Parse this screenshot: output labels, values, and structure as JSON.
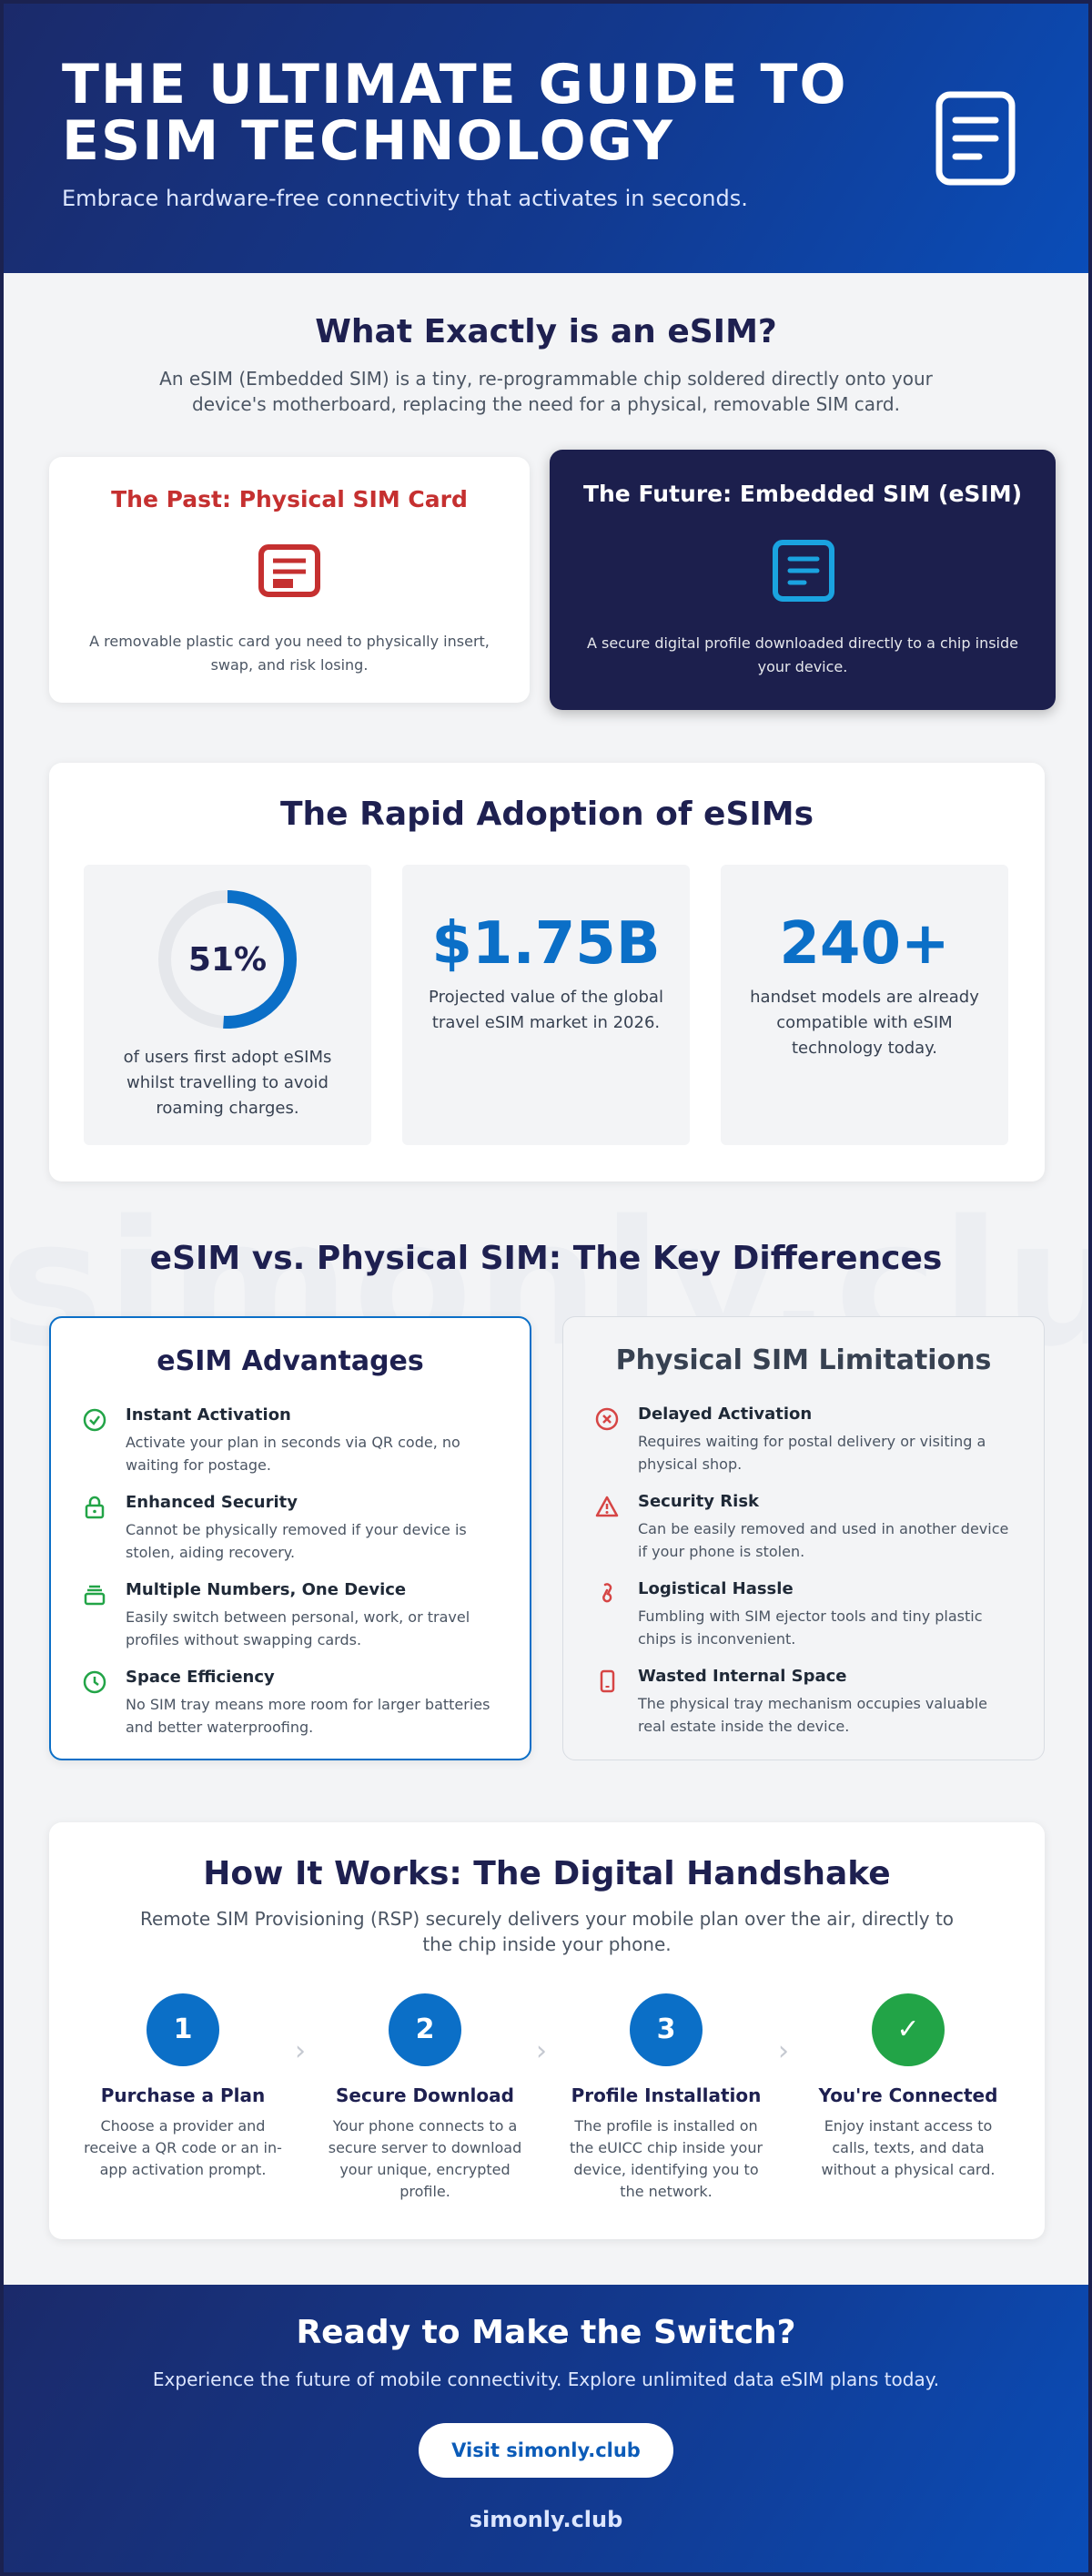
{
  "header": {
    "title": "THE ULTIMATE GUIDE TO ESIM TECHNOLOGY",
    "subtitle": "Embrace hardware-free connectivity that activates in seconds."
  },
  "what": {
    "title": "What Exactly is an eSIM?",
    "description": "An eSIM (Embedded SIM) is a tiny, re-programmable chip soldered directly onto your device's motherboard, replacing the need for a physical, removable SIM card.",
    "past": {
      "title": "The Past: Physical SIM Card",
      "description": "A removable plastic card you need to physically insert, swap, and risk losing."
    },
    "future": {
      "title": "The Future: Embedded SIM (eSIM)",
      "description": "A secure digital profile downloaded directly to a chip inside your device."
    }
  },
  "adoption": {
    "title": "The Rapid Adoption of eSIMs",
    "stats": [
      {
        "value": "51%",
        "fraction": 0.51,
        "description": "of users first adopt eSIMs whilst travelling to avoid roaming charges."
      },
      {
        "value": "$1.75B",
        "description": "Projected value of the global travel eSIM market in 2026."
      },
      {
        "value": "240+",
        "description": "handset models are already compatible with eSIM technology today."
      }
    ]
  },
  "compare": {
    "watermark": "simonly.club",
    "title": "eSIM vs. Physical SIM: The Key Differences",
    "advantages": {
      "title": "eSIM Advantages",
      "items": [
        {
          "icon": "check-circle-icon",
          "title": "Instant Activation",
          "description": "Activate your plan in seconds via QR code, no waiting for postage."
        },
        {
          "icon": "lock-icon",
          "title": "Enhanced Security",
          "description": "Cannot be physically removed if your device is stolen, aiding recovery."
        },
        {
          "icon": "layers-icon",
          "title": "Multiple Numbers, One Device",
          "description": "Easily switch between personal, work, or travel profiles without swapping cards."
        },
        {
          "icon": "clock-icon",
          "title": "Space Efficiency",
          "description": "No SIM tray means more room for larger batteries and better waterproofing."
        }
      ]
    },
    "limitations": {
      "title": "Physical SIM Limitations",
      "items": [
        {
          "icon": "x-circle-icon",
          "title": "Delayed Activation",
          "description": "Requires waiting for postal delivery or visiting a physical shop."
        },
        {
          "icon": "warning-icon",
          "title": "Security Risk",
          "description": "Can be easily removed and used in another device if your phone is stolen."
        },
        {
          "icon": "pin-icon",
          "title": "Logistical Hassle",
          "description": "Fumbling with SIM ejector tools and tiny plastic chips is inconvenient."
        },
        {
          "icon": "phone-icon",
          "title": "Wasted Internal Space",
          "description": "The physical tray mechanism occupies valuable real estate inside the device."
        }
      ]
    }
  },
  "how": {
    "title": "How It Works: The Digital Handshake",
    "description": "Remote SIM Provisioning (RSP) securely delivers your mobile plan over the air, directly to the chip inside your phone.",
    "steps": [
      {
        "number": "1",
        "title": "Purchase a Plan",
        "description": "Choose a provider and receive a QR code or an in-app activation prompt."
      },
      {
        "number": "2",
        "title": "Secure Download",
        "description": "Your phone connects to a secure server to download your unique, encrypted profile."
      },
      {
        "number": "3",
        "title": "Profile Installation",
        "description": "The profile is installed on the eUICC chip inside your device, identifying you to the network."
      },
      {
        "number": "✓",
        "title": "You're Connected",
        "description": "Enjoy instant access to calls, texts, and data without a physical card."
      }
    ]
  },
  "footer": {
    "title": "Ready to Make the Switch?",
    "subtitle": "Experience the future of mobile connectivity. Explore unlimited data eSIM plans today.",
    "button": "Visit simonly.club",
    "brand": "simonly.club"
  },
  "colors": {
    "navy": "#1c1f4d",
    "blue": "#0b6fc7",
    "red": "#c53030",
    "green": "#22a447",
    "cyan": "#1aa3e0"
  }
}
